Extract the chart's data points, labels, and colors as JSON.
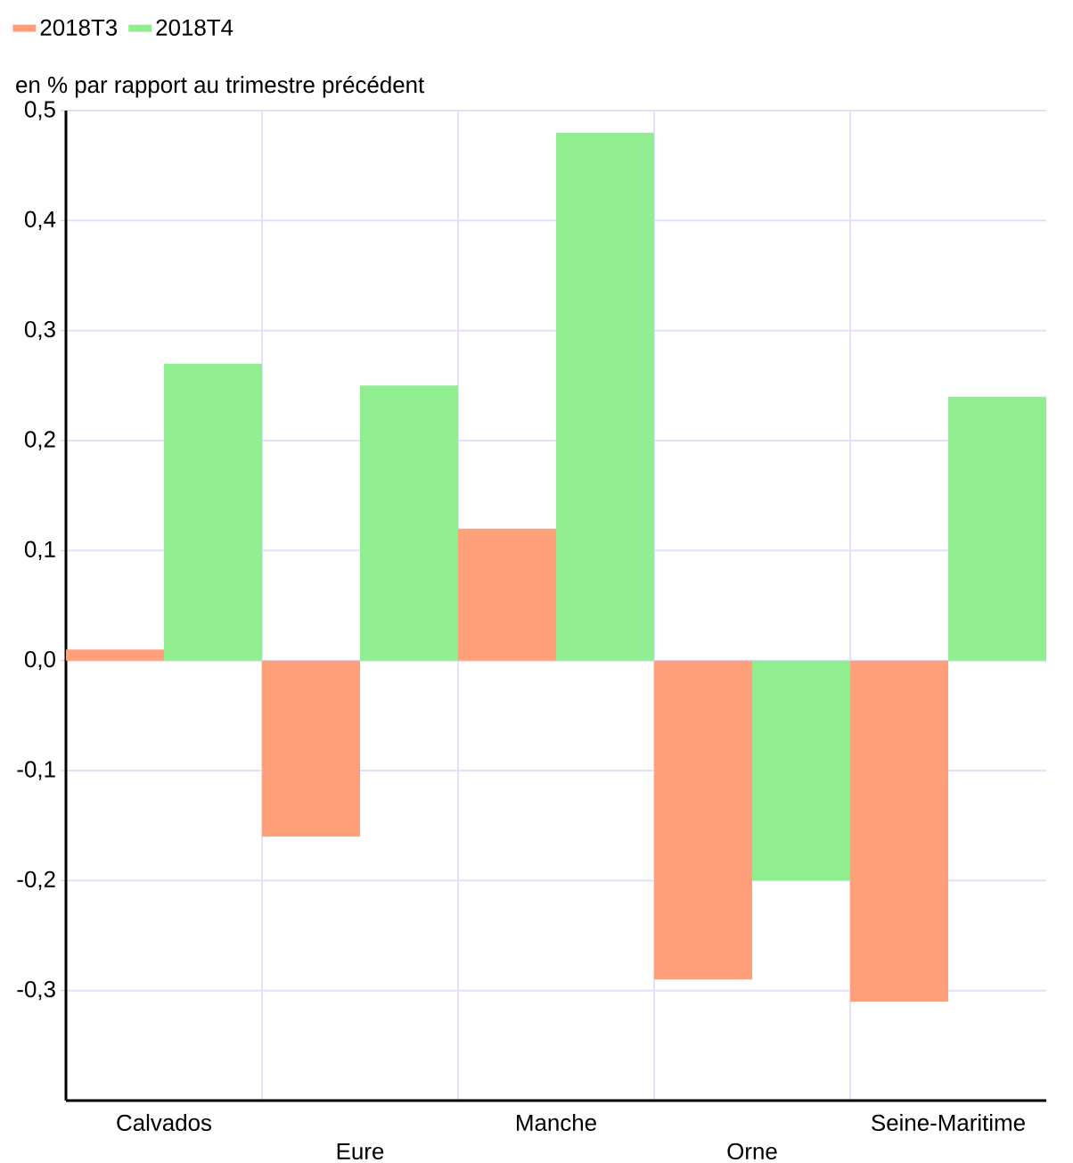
{
  "chart_data": {
    "type": "bar",
    "ylabel": "en % par rapport au trimestre précédent",
    "categories": [
      "Calvados",
      "Eure",
      "Manche",
      "Orne",
      "Seine-Maritime"
    ],
    "series": [
      {
        "name": "2018T3",
        "color": "#ffa07a",
        "values": [
          0.01,
          -0.16,
          0.12,
          -0.29,
          -0.31
        ]
      },
      {
        "name": "2018T4",
        "color": "#90ee90",
        "values": [
          0.27,
          0.25,
          0.48,
          -0.2,
          0.24
        ]
      }
    ],
    "ylim": [
      -0.4,
      0.5
    ],
    "yticks": [
      {
        "value": -0.3,
        "label": "-0,3"
      },
      {
        "value": -0.2,
        "label": "-0,2"
      },
      {
        "value": -0.1,
        "label": "-0,1"
      },
      {
        "value": 0,
        "label": "0,0"
      },
      {
        "value": 0.1,
        "label": "0,1"
      },
      {
        "value": 0.2,
        "label": "0,2"
      },
      {
        "value": 0.3,
        "label": "0,3"
      },
      {
        "value": 0.4,
        "label": "0,4"
      },
      {
        "value": 0.5,
        "label": "0,5"
      }
    ],
    "grid": true,
    "legend": "top left"
  }
}
